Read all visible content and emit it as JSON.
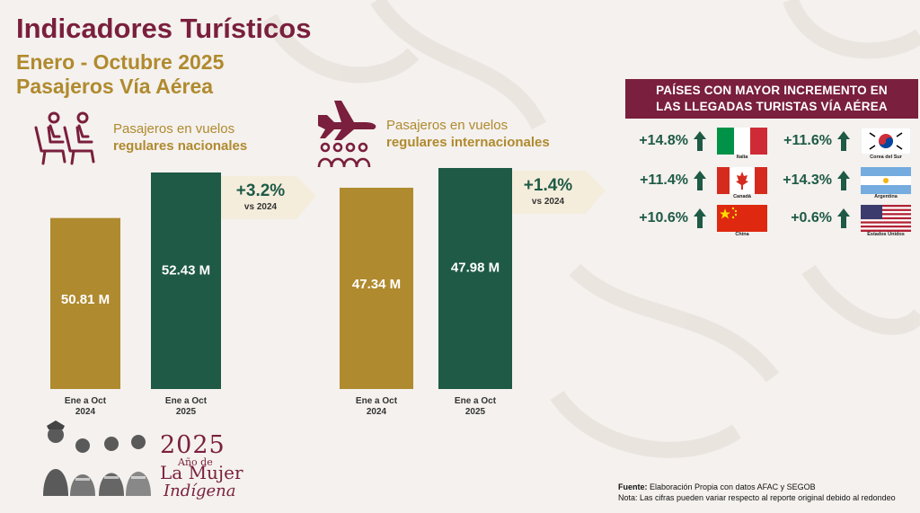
{
  "header": {
    "title": "Indicadores Turísticos",
    "subtitle_period": "Enero - Octubre 2025",
    "subtitle_topic": "Pasajeros Vía Aérea"
  },
  "national": {
    "label_line1": "Pasajeros en vuelos",
    "label_line2": "regulares nacionales",
    "badge_pct": "+3.2%",
    "badge_vs": "vs 2024",
    "icon": "airplane-seats-icon"
  },
  "international": {
    "label_line1": "Pasajeros en vuelos",
    "label_line2": "regulares internacionales",
    "badge_pct": "+1.4%",
    "badge_vs": "vs 2024",
    "icon": "airplane-crowd-icon"
  },
  "colors": {
    "gold": "#b08a2e",
    "green": "#1e5a46",
    "maroon": "#7a1f3d",
    "badge_bg": "#f5eddc"
  },
  "chart_data": [
    {
      "type": "bar",
      "categories": [
        "Ene a Oct 2024",
        "Ene a Oct 2025"
      ],
      "category_lines": [
        [
          "Ene a Oct",
          "2024"
        ],
        [
          "Ene a Oct",
          "2025"
        ]
      ],
      "values": [
        50.81,
        52.43
      ],
      "value_labels": [
        "50.81 M",
        "52.43 M"
      ],
      "title": "",
      "xlabel": "",
      "ylabel": "",
      "grid": false
    },
    {
      "type": "bar",
      "categories": [
        "Ene a Oct 2024",
        "Ene a Oct 2025"
      ],
      "category_lines": [
        [
          "Ene a Oct",
          "2024"
        ],
        [
          "Ene a Oct",
          "2025"
        ]
      ],
      "values": [
        47.34,
        47.98
      ],
      "value_labels": [
        "47.34 M",
        "47.98 M"
      ],
      "title": "",
      "xlabel": "",
      "ylabel": "",
      "grid": false
    }
  ],
  "countries_panel": {
    "title_line1": "PAÍSES CON MAYOR INCREMENTO EN",
    "title_line2": "LAS  LLEGADAS TURISTAS VÍA AÉREA",
    "countries": [
      {
        "name": "Italia",
        "pct": "+14.8%",
        "flag": "italy-flag"
      },
      {
        "name": "Corea del Sur",
        "pct": "+11.6%",
        "flag": "south-korea-flag"
      },
      {
        "name": "Canadá",
        "pct": "+11.4%",
        "flag": "canada-flag"
      },
      {
        "name": "Argentina",
        "pct": "+14.3%",
        "flag": "argentina-flag"
      },
      {
        "name": "China",
        "pct": "+10.6%",
        "flag": "china-flag"
      },
      {
        "name": "Estados Unidos",
        "pct": "+0.6%",
        "flag": "usa-flag"
      }
    ]
  },
  "logo": {
    "year": "2025",
    "line1": "Año de",
    "line2": "La Mujer",
    "line3": "Indígena"
  },
  "footer": {
    "source_label": "Fuente:",
    "source_text": " Elaboración Propia con datos AFAC y SEGOB",
    "note": "Nota: Las cifras pueden variar respecto al reporte original debido al redondeo"
  }
}
